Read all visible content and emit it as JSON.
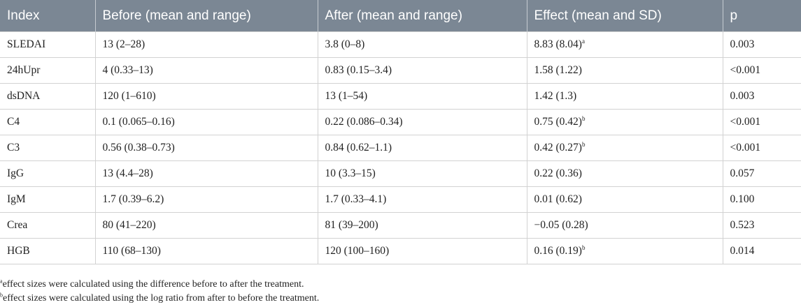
{
  "table": {
    "headers": [
      "Index",
      "Before (mean and range)",
      "After (mean and range)",
      "Effect (mean and SD)",
      "p"
    ],
    "rows": [
      {
        "index": "SLEDAI",
        "before": "13 (2–28)",
        "after": "3.8 (0–8)",
        "effect": "8.83 (8.04)",
        "effect_note": "a",
        "p": "0.003"
      },
      {
        "index": "24hUpr",
        "before": "4 (0.33–13)",
        "after": "0.83 (0.15–3.4)",
        "effect": "1.58 (1.22)",
        "effect_note": "",
        "p": "<0.001"
      },
      {
        "index": "dsDNA",
        "before": "120 (1–610)",
        "after": "13 (1–54)",
        "effect": "1.42 (1.3)",
        "effect_note": "",
        "p": "0.003"
      },
      {
        "index": "C4",
        "before": "0.1 (0.065–0.16)",
        "after": "0.22 (0.086–0.34)",
        "effect": "0.75 (0.42)",
        "effect_note": "b",
        "p": "<0.001"
      },
      {
        "index": "C3",
        "before": "0.56 (0.38–0.73)",
        "after": "0.84 (0.62–1.1)",
        "effect": "0.42 (0.27)",
        "effect_note": "b",
        "p": "<0.001"
      },
      {
        "index": "IgG",
        "before": "13 (4.4–28)",
        "after": "10 (3.3–15)",
        "effect": "0.22 (0.36)",
        "effect_note": "",
        "p": "0.057"
      },
      {
        "index": "IgM",
        "before": "1.7 (0.39–6.2)",
        "after": "1.7 (0.33–4.1)",
        "effect": "0.01 (0.62)",
        "effect_note": "",
        "p": "0.100"
      },
      {
        "index": "Crea",
        "before": "80 (41–220)",
        "after": "81 (39–200)",
        "effect": "−0.05 (0.28)",
        "effect_note": "",
        "p": "0.523"
      },
      {
        "index": "HGB",
        "before": "110 (68–130)",
        "after": "120 (100–160)",
        "effect": "0.16 (0.19)",
        "effect_note": "b",
        "p": "0.014"
      }
    ]
  },
  "footnotes": [
    {
      "mark": "a",
      "text": "effect sizes were calculated using the difference before to after the treatment."
    },
    {
      "mark": "b",
      "text": "effect sizes were calculated using the log ratio from after to before the treatment."
    }
  ],
  "colors": {
    "header_bg": "#7b8794",
    "header_text": "#ffffff",
    "grid_line": "#d2d2d2"
  }
}
